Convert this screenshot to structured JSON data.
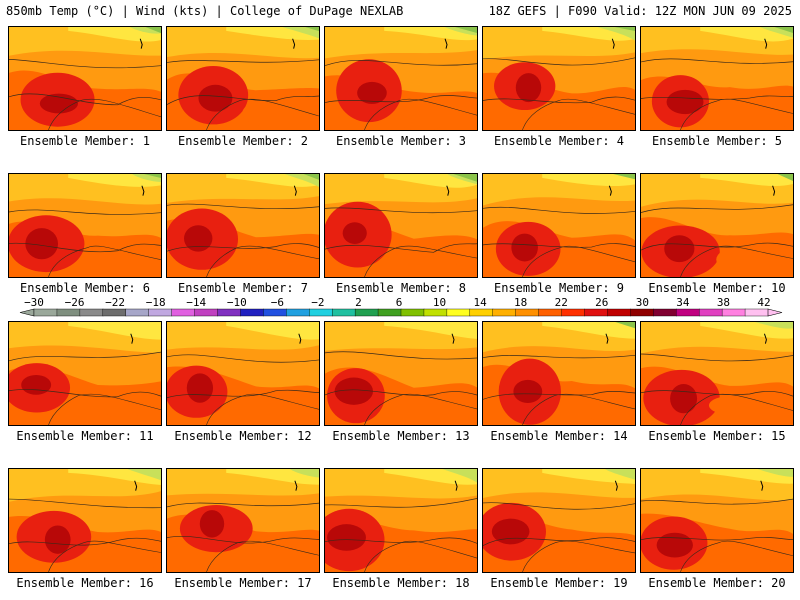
{
  "header": {
    "left": "850mb Temp (°C) | Wind (kts) | College of DuPage NEXLAB",
    "right": "18Z GEFS | F090 Valid: 12Z MON JUN 09 2025"
  },
  "member_label_prefix": "Ensemble Member: ",
  "members": [
    "1",
    "2",
    "3",
    "4",
    "5",
    "6",
    "7",
    "8",
    "9",
    "10",
    "11",
    "12",
    "13",
    "14",
    "15",
    "16",
    "17",
    "18",
    "19",
    "20"
  ],
  "colorbar": {
    "tick_labels": [
      "−30",
      "−26",
      "−22",
      "−18",
      "−14",
      "−10",
      "−6",
      "−2",
      "2",
      "6",
      "10",
      "14",
      "18",
      "22",
      "26",
      "30",
      "34",
      "38",
      "42"
    ],
    "colors": [
      "#9aa89a",
      "#7f8f7f",
      "#8a8a8a",
      "#6d6d6d",
      "#a6a6c8",
      "#c0a8e0",
      "#e060e0",
      "#c040c0",
      "#8030c0",
      "#2020c0",
      "#2050e0",
      "#20a0e0",
      "#20d0e0",
      "#20c0a0",
      "#20a050",
      "#40a020",
      "#80c000",
      "#c0e000",
      "#ffff20",
      "#ffd000",
      "#ffb000",
      "#ff9000",
      "#ff6000",
      "#ff3000",
      "#e01010",
      "#c00000",
      "#900000",
      "#800030",
      "#c00080",
      "#e040c0",
      "#ff80e0",
      "#ffc0f0"
    ]
  },
  "map_colors": {
    "green": "#8bc34a",
    "lightgreen": "#c8e05a",
    "yellow": "#ffe640",
    "orange_light": "#ffc020",
    "orange": "#ff9a10",
    "orange_dark": "#ff6a00",
    "red": "#e82010",
    "dark_red": "#b80808"
  }
}
